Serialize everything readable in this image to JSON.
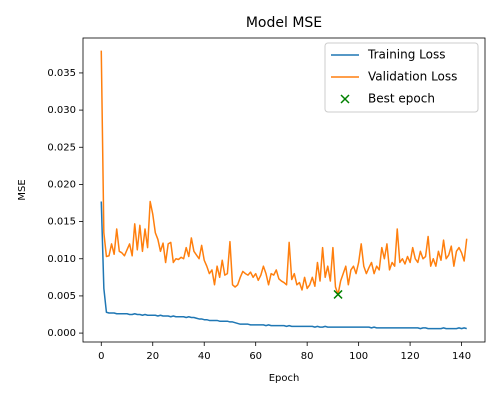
{
  "chart_data": {
    "type": "line",
    "title": "Model MSE",
    "xlabel": "Epoch",
    "ylabel": "MSE",
    "x": [
      0,
      1,
      2,
      3,
      4,
      5,
      6,
      7,
      8,
      9,
      10,
      11,
      12,
      13,
      14,
      15,
      16,
      17,
      18,
      19,
      20,
      21,
      22,
      23,
      24,
      25,
      26,
      27,
      28,
      29,
      30,
      31,
      32,
      33,
      34,
      35,
      36,
      37,
      38,
      39,
      40,
      41,
      42,
      43,
      44,
      45,
      46,
      47,
      48,
      49,
      50,
      51,
      52,
      53,
      54,
      55,
      56,
      57,
      58,
      59,
      60,
      61,
      62,
      63,
      64,
      65,
      66,
      67,
      68,
      69,
      70,
      71,
      72,
      73,
      74,
      75,
      76,
      77,
      78,
      79,
      80,
      81,
      82,
      83,
      84,
      85,
      86,
      87,
      88,
      89,
      90,
      91,
      92,
      93,
      94,
      95,
      96,
      97,
      98,
      99,
      100,
      101,
      102,
      103,
      104,
      105,
      106,
      107,
      108,
      109,
      110,
      111,
      112,
      113,
      114,
      115,
      116,
      117,
      118,
      119,
      120,
      121,
      122,
      123,
      124,
      125,
      126,
      127,
      128,
      129,
      130,
      131,
      132,
      133,
      134,
      135,
      136,
      137,
      138,
      139,
      140,
      141,
      142
    ],
    "series": [
      {
        "name": "Training Loss",
        "color": "#1f77b4",
        "values": [
          0.0177,
          0.006,
          0.0028,
          0.0027,
          0.0027,
          0.0027,
          0.0026,
          0.0026,
          0.0026,
          0.0026,
          0.0026,
          0.0025,
          0.0025,
          0.0026,
          0.0025,
          0.0025,
          0.0024,
          0.0025,
          0.0024,
          0.0024,
          0.0024,
          0.0024,
          0.0023,
          0.0024,
          0.0023,
          0.0023,
          0.0023,
          0.0022,
          0.0023,
          0.0022,
          0.0022,
          0.0022,
          0.0022,
          0.0021,
          0.0022,
          0.0021,
          0.0021,
          0.002,
          0.0019,
          0.0019,
          0.0018,
          0.0018,
          0.0017,
          0.0017,
          0.0017,
          0.0017,
          0.0016,
          0.0016,
          0.0016,
          0.0016,
          0.0015,
          0.0015,
          0.0014,
          0.0013,
          0.0012,
          0.0012,
          0.0012,
          0.0012,
          0.0011,
          0.0011,
          0.0011,
          0.0011,
          0.0011,
          0.0011,
          0.001,
          0.0011,
          0.001,
          0.001,
          0.001,
          0.001,
          0.001,
          0.001,
          0.0009,
          0.001,
          0.0009,
          0.0009,
          0.0009,
          0.0009,
          0.0009,
          0.0009,
          0.0009,
          0.0009,
          0.0009,
          0.0008,
          0.0009,
          0.0008,
          0.0008,
          0.0009,
          0.0008,
          0.0008,
          0.0008,
          0.0008,
          0.0008,
          0.0008,
          0.0008,
          0.0008,
          0.0008,
          0.0008,
          0.0008,
          0.0008,
          0.0008,
          0.0008,
          0.0008,
          0.0008,
          0.0008,
          0.0007,
          0.0008,
          0.0007,
          0.0007,
          0.0007,
          0.0007,
          0.0007,
          0.0007,
          0.0007,
          0.0007,
          0.0007,
          0.0007,
          0.0007,
          0.0007,
          0.0007,
          0.0007,
          0.0007,
          0.0007,
          0.0007,
          0.0006,
          0.0007,
          0.0007,
          0.0006,
          0.0006,
          0.0006,
          0.0006,
          0.0006,
          0.0006,
          0.0007,
          0.0006,
          0.0006,
          0.0006,
          0.0006,
          0.0006,
          0.0007,
          0.0006,
          0.0007,
          0.0006
        ]
      },
      {
        "name": "Validation Loss",
        "color": "#ff7f0e",
        "values": [
          0.038,
          0.0135,
          0.0103,
          0.0104,
          0.012,
          0.0106,
          0.014,
          0.011,
          0.0108,
          0.0104,
          0.0112,
          0.012,
          0.0104,
          0.0147,
          0.0112,
          0.0145,
          0.011,
          0.014,
          0.0115,
          0.0177,
          0.016,
          0.0135,
          0.0126,
          0.011,
          0.0121,
          0.0095,
          0.012,
          0.0122,
          0.0095,
          0.01,
          0.0099,
          0.0102,
          0.01,
          0.0115,
          0.0103,
          0.0128,
          0.011,
          0.0105,
          0.01,
          0.0118,
          0.0098,
          0.009,
          0.008,
          0.0085,
          0.0065,
          0.009,
          0.0075,
          0.0098,
          0.0078,
          0.008,
          0.0123,
          0.0065,
          0.0062,
          0.0065,
          0.0075,
          0.0083,
          0.008,
          0.0078,
          0.0082,
          0.0075,
          0.008,
          0.0071,
          0.0078,
          0.009,
          0.008,
          0.0065,
          0.008,
          0.0078,
          0.0085,
          0.0073,
          0.007,
          0.0068,
          0.0065,
          0.0122,
          0.0072,
          0.008,
          0.0065,
          0.0068,
          0.0058,
          0.0075,
          0.006,
          0.0065,
          0.0075,
          0.0063,
          0.0095,
          0.007,
          0.0115,
          0.0075,
          0.009,
          0.007,
          0.0115,
          0.0062,
          0.0052,
          0.007,
          0.008,
          0.009,
          0.0065,
          0.0085,
          0.009,
          0.008,
          0.0095,
          0.012,
          0.009,
          0.008,
          0.0088,
          0.0095,
          0.008,
          0.009,
          0.0085,
          0.0115,
          0.01,
          0.012,
          0.0085,
          0.0095,
          0.009,
          0.014,
          0.0095,
          0.01,
          0.0093,
          0.0103,
          0.0095,
          0.0115,
          0.01,
          0.0095,
          0.011,
          0.01,
          0.0103,
          0.013,
          0.009,
          0.01,
          0.009,
          0.011,
          0.0098,
          0.0125,
          0.01,
          0.0105,
          0.0117,
          0.009,
          0.011,
          0.0115,
          0.0108,
          0.0097,
          0.0127
        ]
      },
      {
        "name": "Best epoch",
        "type": "scatter",
        "color": "#008000",
        "x": [
          92
        ],
        "values": [
          0.0052
        ]
      }
    ],
    "xlim": [
      -7.1,
      149.1
    ],
    "ylim": [
      -0.0012,
      0.0397
    ],
    "xticks": [
      0,
      20,
      40,
      60,
      80,
      100,
      120,
      140
    ],
    "yticks": [
      {
        "value": 0,
        "label": "0.000"
      },
      {
        "value": 0.005,
        "label": "0.005"
      },
      {
        "value": 0.01,
        "label": "0.010"
      },
      {
        "value": 0.015,
        "label": "0.015"
      },
      {
        "value": 0.02,
        "label": "0.020"
      },
      {
        "value": 0.025,
        "label": "0.025"
      },
      {
        "value": 0.03,
        "label": "0.030"
      },
      {
        "value": 0.035,
        "label": "0.035"
      }
    ],
    "legend": "upper right"
  }
}
